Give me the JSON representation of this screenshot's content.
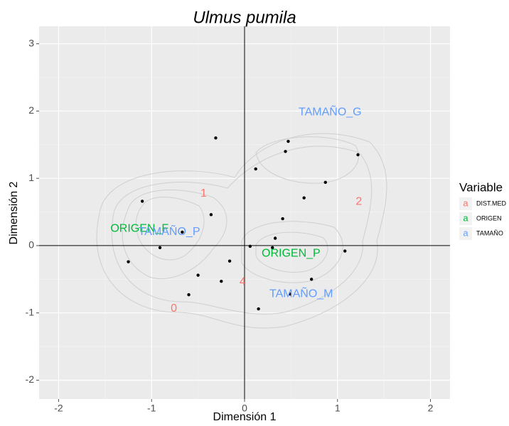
{
  "chart_data": {
    "type": "scatter",
    "title": "Ulmus pumila",
    "xlabel": "Dimensión 1",
    "ylabel": "Dimensión 2",
    "xlim": [
      -2.21,
      2.21
    ],
    "ylim": [
      -2.28,
      3.26
    ],
    "xticks": [
      -2,
      -1,
      0,
      1,
      2
    ],
    "yticks": [
      -2,
      -1,
      0,
      1,
      2,
      3
    ],
    "grid": true,
    "hline": 0,
    "vline": 0,
    "points": {
      "color": "#000000",
      "x": [
        -0.31,
        0.47,
        0.44,
        1.22,
        0.12,
        0.87,
        -1.1,
        0.64,
        -0.36,
        0.41,
        -0.67,
        0.33,
        0.06,
        0.3,
        1.08,
        -0.91,
        -1.25,
        -0.16,
        -0.5,
        -0.25,
        0.72,
        -0.6,
        0.49,
        0.15
      ],
      "y": [
        1.6,
        1.55,
        1.4,
        1.35,
        1.14,
        0.94,
        0.66,
        0.71,
        0.46,
        0.4,
        0.2,
        0.11,
        -0.01,
        -0.03,
        -0.08,
        -0.03,
        -0.24,
        -0.23,
        -0.44,
        -0.53,
        -0.5,
        -0.73,
        -0.72,
        -0.94
      ]
    },
    "legend_title": "Variable",
    "legend_key": "a",
    "series": [
      {
        "name": "DIST.MED",
        "color": "#f8766d",
        "labels": [
          "1",
          "2",
          "0",
          "4"
        ],
        "x": [
          -0.44,
          1.23,
          -0.76,
          -0.02
        ],
        "y": [
          0.77,
          0.65,
          -0.94,
          -0.54
        ]
      },
      {
        "name": "ORIGEN",
        "color": "#00ba38",
        "labels": [
          "ORIGEN_F",
          "ORIGEN_P"
        ],
        "x": [
          -1.13,
          0.5
        ],
        "y": [
          0.25,
          -0.12
        ]
      },
      {
        "name": "TAMAÑO",
        "color": "#619cff",
        "labels": [
          "TAMAÑO_G",
          "TAMAÑO_P",
          "TAMAÑO_M"
        ],
        "x": [
          0.92,
          -0.81,
          0.61
        ],
        "y": [
          1.98,
          0.2,
          -0.72
        ]
      }
    ]
  }
}
